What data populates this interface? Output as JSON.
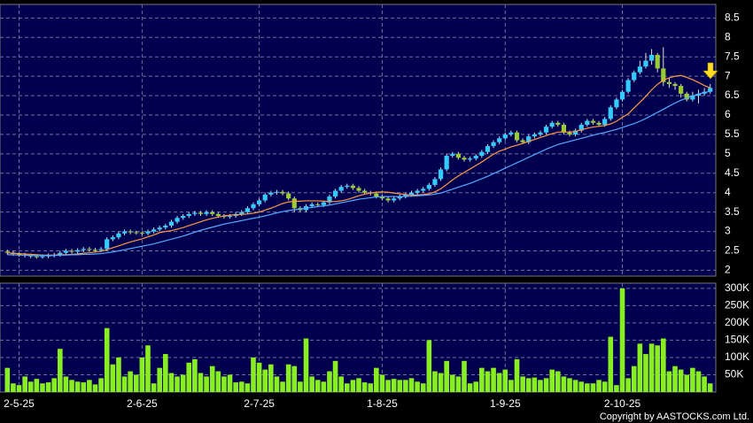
{
  "chart_data": [
    {
      "type": "candlestick",
      "up_color": "#33ccff",
      "down_color": "#99cc33",
      "open": [
        2.48,
        2.45,
        2.42,
        2.4,
        2.38,
        2.36,
        2.35,
        2.36,
        2.38,
        2.4,
        2.45,
        2.5,
        2.48,
        2.52,
        2.55,
        2.53,
        2.52,
        2.55,
        2.8,
        2.85,
        2.95,
        3.0,
        2.98,
        2.97,
        2.95,
        3.0,
        3.05,
        3.1,
        3.15,
        3.25,
        3.35,
        3.4,
        3.45,
        3.48,
        3.45,
        3.5,
        3.45,
        3.4,
        3.38,
        3.4,
        3.45,
        3.5,
        3.6,
        3.7,
        3.8,
        3.95,
        4.0,
        4.02,
        3.98,
        3.85,
        3.6,
        3.55,
        3.65,
        3.7,
        3.68,
        3.75,
        3.9,
        4.05,
        4.15,
        4.18,
        4.12,
        4.05,
        4.0,
        3.98,
        3.9,
        3.85,
        3.8,
        3.85,
        3.9,
        3.95,
        4.0,
        4.05,
        4.1,
        4.2,
        4.35,
        4.6,
        4.95,
        5.0,
        4.9,
        4.85,
        4.88,
        4.95,
        5.05,
        5.2,
        5.3,
        5.4,
        5.5,
        5.55,
        5.35,
        5.3,
        5.45,
        5.5,
        5.55,
        5.7,
        5.8,
        5.75,
        5.55,
        5.5,
        5.6,
        5.75,
        5.85,
        5.8,
        5.75,
        5.9,
        6.2,
        6.4,
        6.6,
        6.9,
        7.1,
        7.25,
        7.4,
        7.55,
        7.2,
        6.85,
        6.8,
        6.75,
        6.55,
        6.4,
        6.5,
        6.55,
        6.6
      ],
      "high": [
        2.53,
        2.5,
        2.47,
        2.45,
        2.43,
        2.41,
        2.41,
        2.43,
        2.45,
        2.5,
        2.55,
        2.55,
        2.57,
        2.6,
        2.6,
        2.58,
        2.6,
        2.85,
        2.9,
        3.0,
        3.05,
        3.05,
        3.02,
        3.0,
        3.05,
        3.1,
        3.15,
        3.2,
        3.3,
        3.4,
        3.45,
        3.5,
        3.53,
        3.53,
        3.55,
        3.55,
        3.5,
        3.45,
        3.45,
        3.5,
        3.55,
        3.65,
        3.75,
        3.85,
        4.0,
        4.05,
        4.07,
        4.07,
        4.03,
        3.9,
        3.65,
        3.7,
        3.75,
        3.75,
        3.8,
        3.95,
        4.1,
        4.2,
        4.23,
        4.23,
        4.17,
        4.1,
        4.05,
        4.03,
        3.95,
        3.9,
        3.9,
        3.95,
        4.0,
        4.05,
        4.1,
        4.15,
        4.25,
        4.4,
        4.65,
        5.0,
        5.05,
        5.05,
        4.95,
        4.93,
        5.0,
        5.1,
        5.25,
        5.35,
        5.45,
        5.55,
        5.6,
        5.6,
        5.4,
        5.5,
        5.55,
        5.6,
        5.75,
        5.85,
        5.85,
        5.8,
        5.6,
        5.65,
        5.8,
        5.9,
        5.9,
        5.85,
        5.95,
        6.25,
        6.45,
        6.65,
        6.95,
        7.15,
        7.4,
        7.6,
        7.7,
        7.6,
        7.75,
        6.95,
        6.85,
        6.8,
        6.6,
        6.6,
        6.65,
        6.7,
        6.8
      ],
      "low": [
        2.4,
        2.37,
        2.35,
        2.33,
        2.31,
        2.3,
        2.3,
        2.31,
        2.33,
        2.35,
        2.4,
        2.43,
        2.43,
        2.47,
        2.48,
        2.47,
        2.47,
        2.5,
        2.75,
        2.8,
        2.9,
        2.93,
        2.92,
        2.9,
        2.9,
        2.95,
        3.0,
        3.05,
        3.1,
        3.2,
        3.3,
        3.35,
        3.4,
        3.4,
        3.4,
        3.4,
        3.35,
        3.33,
        3.33,
        3.35,
        3.4,
        3.45,
        3.55,
        3.65,
        3.75,
        3.9,
        3.95,
        3.93,
        3.8,
        3.5,
        3.5,
        3.5,
        3.6,
        3.63,
        3.63,
        3.7,
        3.85,
        4.0,
        4.1,
        4.07,
        4.0,
        3.95,
        3.93,
        3.85,
        3.8,
        3.75,
        3.75,
        3.8,
        3.85,
        3.9,
        3.95,
        4.0,
        4.05,
        4.15,
        4.3,
        4.55,
        4.9,
        4.85,
        4.8,
        4.8,
        4.83,
        4.9,
        5.0,
        5.15,
        5.25,
        5.35,
        5.45,
        5.3,
        5.25,
        5.25,
        5.4,
        5.45,
        5.5,
        5.65,
        5.7,
        5.5,
        5.45,
        5.45,
        5.55,
        5.7,
        5.75,
        5.7,
        5.7,
        5.85,
        6.15,
        6.35,
        6.55,
        6.85,
        7.05,
        7.2,
        7.3,
        7.1,
        6.75,
        6.7,
        6.65,
        6.45,
        6.35,
        6.35,
        6.3,
        6.5,
        6.55
      ],
      "close": [
        2.45,
        2.42,
        2.4,
        2.38,
        2.36,
        2.35,
        2.36,
        2.38,
        2.4,
        2.45,
        2.5,
        2.48,
        2.52,
        2.55,
        2.53,
        2.52,
        2.55,
        2.8,
        2.85,
        2.95,
        3.0,
        2.98,
        2.97,
        2.95,
        3.0,
        3.05,
        3.1,
        3.15,
        3.25,
        3.35,
        3.4,
        3.45,
        3.48,
        3.45,
        3.5,
        3.45,
        3.4,
        3.38,
        3.4,
        3.45,
        3.5,
        3.6,
        3.7,
        3.8,
        3.95,
        4.0,
        4.02,
        3.98,
        3.85,
        3.6,
        3.55,
        3.65,
        3.7,
        3.68,
        3.75,
        3.9,
        4.05,
        4.15,
        4.18,
        4.12,
        4.05,
        4.0,
        3.98,
        3.9,
        3.85,
        3.8,
        3.85,
        3.9,
        3.95,
        4.0,
        4.05,
        4.1,
        4.2,
        4.35,
        4.6,
        4.95,
        5.0,
        4.9,
        4.85,
        4.88,
        4.95,
        5.05,
        5.2,
        5.3,
        5.4,
        5.5,
        5.55,
        5.35,
        5.3,
        5.45,
        5.5,
        5.55,
        5.7,
        5.8,
        5.75,
        5.55,
        5.5,
        5.6,
        5.75,
        5.85,
        5.8,
        5.75,
        5.9,
        6.2,
        6.4,
        6.6,
        6.9,
        7.1,
        7.25,
        7.4,
        7.55,
        7.2,
        6.85,
        6.8,
        6.75,
        6.55,
        6.4,
        6.5,
        6.55,
        6.6,
        6.7
      ],
      "series": [
        {
          "color": "#ff9944",
          "values": [
            2.45,
            2.44,
            2.43,
            2.42,
            2.41,
            2.4,
            2.39,
            2.39,
            2.39,
            2.4,
            2.4,
            2.41,
            2.42,
            2.44,
            2.45,
            2.47,
            2.49,
            2.53,
            2.58,
            2.63,
            2.68,
            2.73,
            2.77,
            2.81,
            2.86,
            2.91,
            2.97,
            3.0,
            3.02,
            3.06,
            3.1,
            3.15,
            3.2,
            3.25,
            3.3,
            3.34,
            3.37,
            3.4,
            3.42,
            3.43,
            3.44,
            3.45,
            3.47,
            3.5,
            3.55,
            3.6,
            3.66,
            3.72,
            3.76,
            3.78,
            3.78,
            3.79,
            3.79,
            3.79,
            3.78,
            3.77,
            3.77,
            3.79,
            3.82,
            3.87,
            3.92,
            3.96,
            3.99,
            4.01,
            4.02,
            4.01,
            3.99,
            3.97,
            3.95,
            3.94,
            3.94,
            3.95,
            3.97,
            4.02,
            4.1,
            4.21,
            4.33,
            4.43,
            4.52,
            4.61,
            4.7,
            4.79,
            4.89,
            4.99,
            5.07,
            5.12,
            5.18,
            5.22,
            5.27,
            5.32,
            5.37,
            5.42,
            5.47,
            5.52,
            5.56,
            5.56,
            5.56,
            5.58,
            5.62,
            5.66,
            5.69,
            5.71,
            5.73,
            5.77,
            5.84,
            5.94,
            6.03,
            6.18,
            6.33,
            6.48,
            6.65,
            6.79,
            6.9,
            6.96,
            7.0,
            7.02,
            6.97,
            6.91,
            6.84,
            6.76,
            6.7
          ]
        },
        {
          "color": "#55aaff",
          "values": [
            2.4,
            2.4,
            2.39,
            2.39,
            2.38,
            2.38,
            2.38,
            2.38,
            2.38,
            2.39,
            2.39,
            2.4,
            2.4,
            2.41,
            2.41,
            2.42,
            2.43,
            2.45,
            2.47,
            2.5,
            2.53,
            2.56,
            2.59,
            2.62,
            2.65,
            2.68,
            2.72,
            2.76,
            2.8,
            2.84,
            2.88,
            2.93,
            2.98,
            3.03,
            3.07,
            3.11,
            3.15,
            3.19,
            3.22,
            3.25,
            3.28,
            3.31,
            3.34,
            3.37,
            3.4,
            3.44,
            3.48,
            3.51,
            3.54,
            3.56,
            3.58,
            3.6,
            3.62,
            3.64,
            3.66,
            3.68,
            3.71,
            3.74,
            3.77,
            3.8,
            3.83,
            3.85,
            3.87,
            3.89,
            3.9,
            3.9,
            3.9,
            3.9,
            3.9,
            3.91,
            3.92,
            3.93,
            3.94,
            3.96,
            3.99,
            4.04,
            4.09,
            4.14,
            4.19,
            4.24,
            4.3,
            4.36,
            4.42,
            4.49,
            4.56,
            4.63,
            4.7,
            4.77,
            4.84,
            4.91,
            4.98,
            5.05,
            5.12,
            5.18,
            5.24,
            5.28,
            5.32,
            5.36,
            5.4,
            5.44,
            5.48,
            5.52,
            5.55,
            5.59,
            5.63,
            5.68,
            5.73,
            5.78,
            5.84,
            5.91,
            5.99,
            6.07,
            6.15,
            6.23,
            6.31,
            6.38,
            6.44,
            6.49,
            6.54,
            6.58,
            6.61
          ]
        }
      ],
      "ylim": [
        1.85,
        8.85
      ],
      "yticks": [
        2,
        2.5,
        3,
        3.5,
        4,
        4.5,
        5,
        5.5,
        6,
        6.5,
        7,
        7.5,
        8,
        8.5
      ],
      "grid": true
    },
    {
      "type": "bar",
      "color": "#88ee22",
      "categories": [
        null,
        null,
        "2-5-25",
        null,
        null,
        null,
        null,
        null,
        null,
        null,
        null,
        null,
        null,
        null,
        null,
        null,
        null,
        null,
        null,
        null,
        null,
        null,
        null,
        "2-6-25",
        null,
        null,
        null,
        null,
        null,
        null,
        null,
        null,
        null,
        null,
        null,
        null,
        null,
        null,
        null,
        null,
        null,
        null,
        null,
        "2-7-25",
        null,
        null,
        null,
        null,
        null,
        null,
        null,
        null,
        null,
        null,
        null,
        null,
        null,
        null,
        null,
        null,
        null,
        null,
        null,
        null,
        "1-8-25",
        null,
        null,
        null,
        null,
        null,
        null,
        null,
        null,
        null,
        null,
        null,
        null,
        null,
        null,
        null,
        null,
        null,
        null,
        null,
        null,
        "1-9-25",
        null,
        null,
        null,
        null,
        null,
        null,
        null,
        null,
        null,
        null,
        null,
        null,
        null,
        null,
        null,
        null,
        null,
        null,
        null,
        "2-10-25",
        null,
        null,
        null,
        null,
        null,
        null,
        null,
        null,
        null,
        null,
        null,
        null,
        null,
        null,
        null
      ],
      "values": [
        70000,
        25000,
        20000,
        45000,
        30000,
        38000,
        25000,
        28000,
        40000,
        125000,
        45000,
        35000,
        30000,
        28000,
        35000,
        22000,
        40000,
        185000,
        80000,
        100000,
        45000,
        60000,
        50000,
        100000,
        135000,
        25000,
        70000,
        110000,
        55000,
        45000,
        50000,
        85000,
        95000,
        55000,
        45000,
        75000,
        60000,
        45000,
        50000,
        28000,
        30000,
        25000,
        100000,
        85000,
        65000,
        80000,
        45000,
        30000,
        80000,
        75000,
        30000,
        155000,
        45000,
        35000,
        30000,
        60000,
        90000,
        45000,
        25000,
        35000,
        40000,
        28000,
        25000,
        70000,
        50000,
        35000,
        38000,
        35000,
        35000,
        40000,
        30000,
        25000,
        150000,
        60000,
        55000,
        90000,
        50000,
        45000,
        90000,
        25000,
        30000,
        70000,
        60000,
        70000,
        55000,
        65000,
        35000,
        95000,
        45000,
        40000,
        42000,
        35000,
        40000,
        65000,
        60000,
        45000,
        40000,
        35000,
        30000,
        25000,
        25000,
        35000,
        30000,
        160000,
        20000,
        300000,
        40000,
        75000,
        140000,
        110000,
        140000,
        135000,
        155000,
        60000,
        75000,
        65000,
        50000,
        70000,
        60000,
        45000,
        25000
      ],
      "ylim": [
        0,
        315000
      ],
      "yticks": [
        {
          "value": 50000,
          "label": "50K"
        },
        {
          "value": 100000,
          "label": "100K"
        },
        {
          "value": 150000,
          "label": "150K"
        },
        {
          "value": 200000,
          "label": "200K"
        },
        {
          "value": 250000,
          "label": "250K"
        },
        {
          "value": 300000,
          "label": "300K"
        }
      ],
      "grid": true
    }
  ],
  "copyright": "Copyright by AASTOCKS.com Ltd."
}
